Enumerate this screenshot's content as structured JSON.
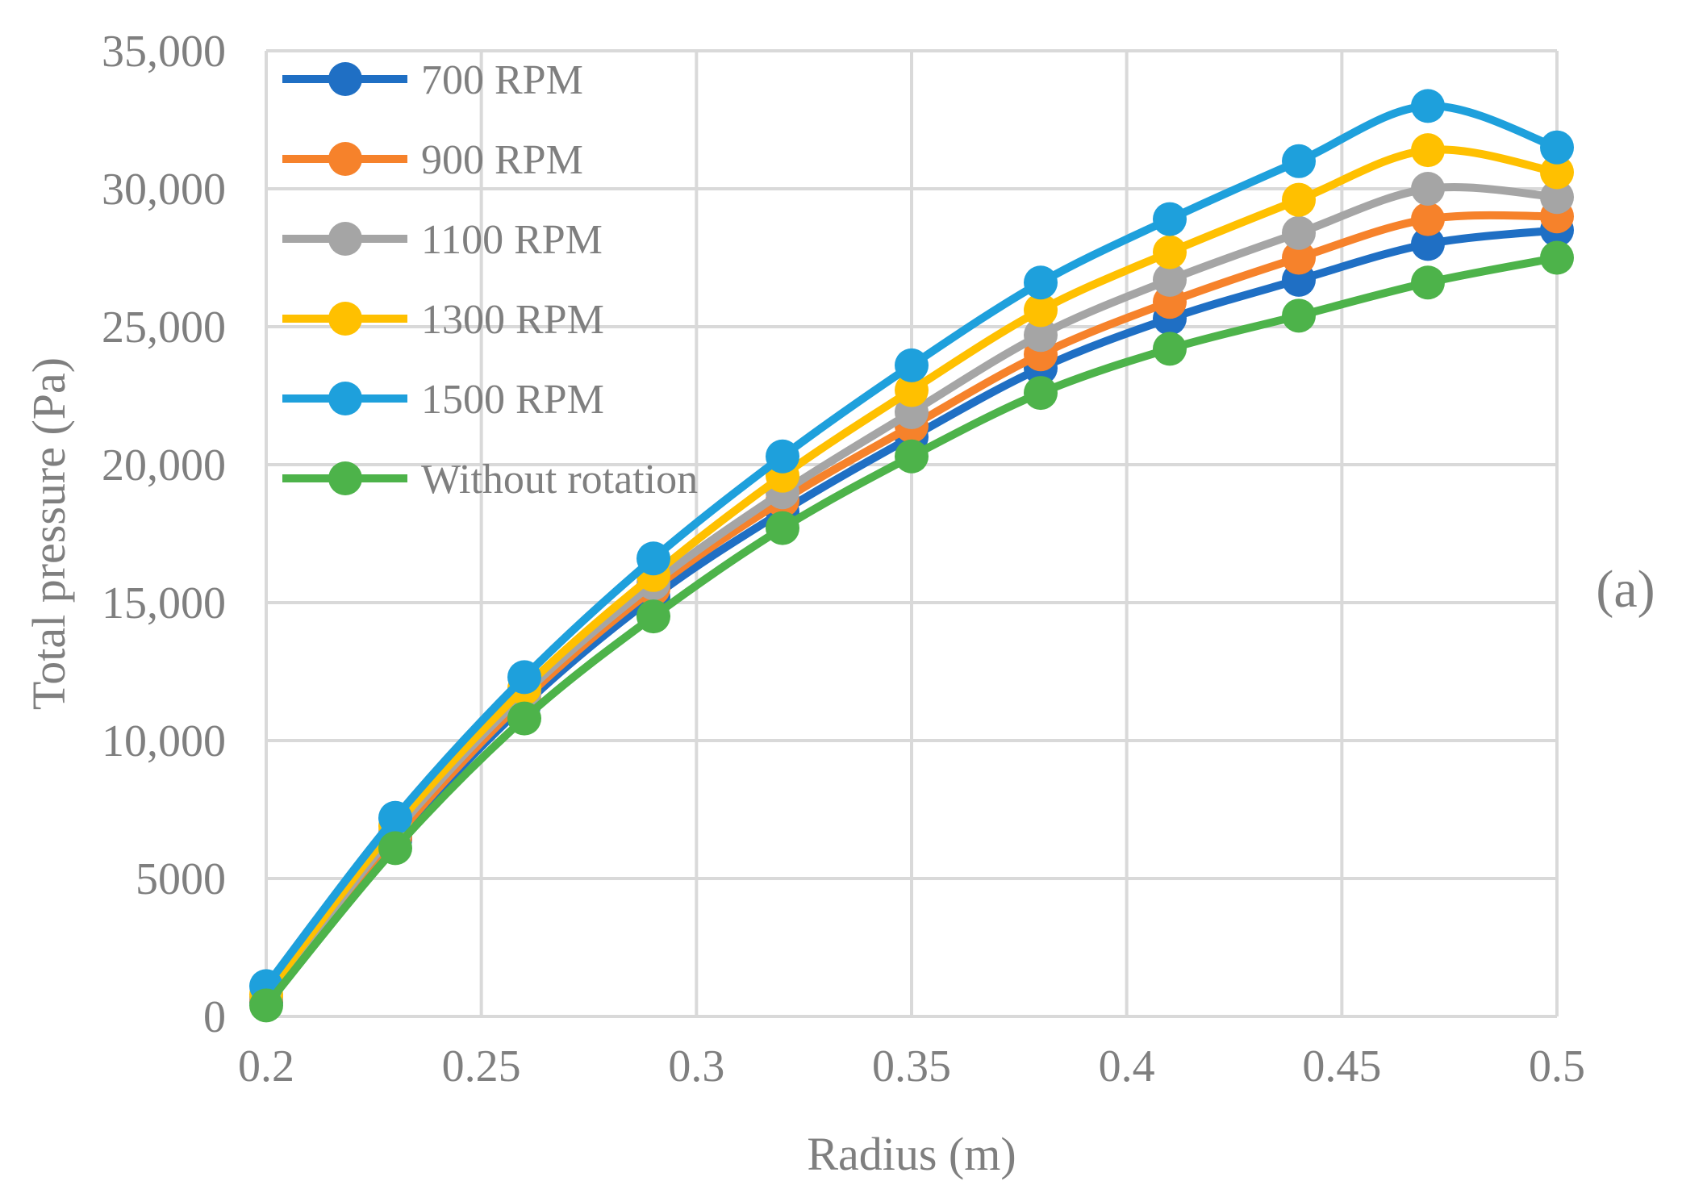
{
  "chart_data": {
    "type": "line",
    "xlabel": "Radius (m)",
    "ylabel": "Total pressure (Pa)",
    "panel_label": "(a)",
    "xlim": [
      0.2,
      0.5
    ],
    "ylim": [
      0,
      35000
    ],
    "x_ticks": [
      "0.2",
      "0.25",
      "0.3",
      "0.35",
      "0.4",
      "0.45",
      "0.5"
    ],
    "x_tick_values": [
      0.2,
      0.25,
      0.3,
      0.35,
      0.4,
      0.45,
      0.5
    ],
    "y_ticks": [
      "0",
      "5000",
      "10,000",
      "15,000",
      "20,000",
      "25,000",
      "30,000",
      "35,000"
    ],
    "y_tick_values": [
      0,
      5000,
      10000,
      15000,
      20000,
      25000,
      30000,
      35000
    ],
    "grid": true,
    "legend_position": "top-left",
    "x": [
      0.2,
      0.23,
      0.26,
      0.29,
      0.32,
      0.35,
      0.38,
      0.41,
      0.44,
      0.47,
      0.5
    ],
    "series": [
      {
        "name": "700 RPM",
        "color": "#1f6fc4",
        "values": [
          500,
          6400,
          11300,
          15200,
          18300,
          21000,
          23500,
          25300,
          26700,
          28000,
          28500
        ]
      },
      {
        "name": "900 RPM",
        "color": "#f6822b",
        "values": [
          600,
          6500,
          11500,
          15500,
          18700,
          21400,
          24000,
          25900,
          27500,
          28900,
          29000
        ]
      },
      {
        "name": "1100 RPM",
        "color": "#a5a5a5",
        "values": [
          700,
          6700,
          11700,
          15700,
          19000,
          21900,
          24700,
          26700,
          28400,
          30000,
          29700
        ]
      },
      {
        "name": "1300 RPM",
        "color": "#ffc000",
        "values": [
          800,
          6900,
          11900,
          16000,
          19600,
          22700,
          25600,
          27700,
          29600,
          31400,
          30600
        ]
      },
      {
        "name": "1500 RPM",
        "color": "#1ea0dc",
        "values": [
          1100,
          7200,
          12300,
          16600,
          20300,
          23600,
          26600,
          28900,
          31000,
          33000,
          31500
        ]
      },
      {
        "name": "Without rotation",
        "color": "#4db34a",
        "values": [
          400,
          6100,
          10800,
          14500,
          17700,
          20300,
          22600,
          24200,
          25400,
          26600,
          27500
        ]
      }
    ]
  }
}
